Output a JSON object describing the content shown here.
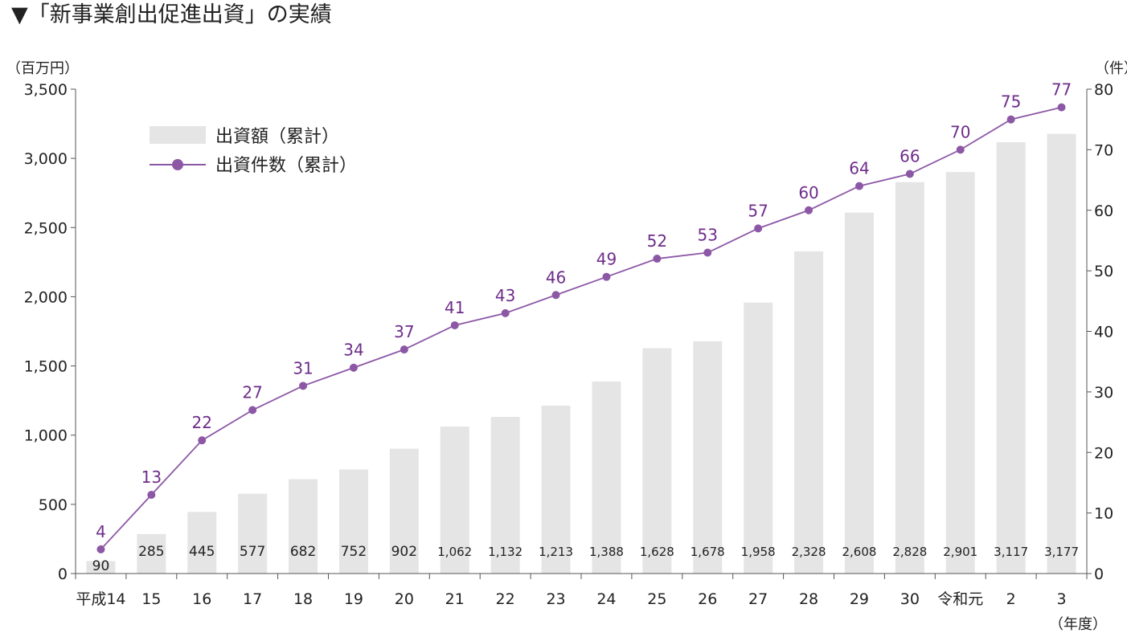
{
  "heading": "▼「新事業創出促進出資」の実績",
  "chart_data": {
    "type": "bar+line",
    "categories": [
      "平成14",
      "15",
      "16",
      "17",
      "18",
      "19",
      "20",
      "21",
      "22",
      "23",
      "24",
      "25",
      "26",
      "27",
      "28",
      "29",
      "30",
      "令和元",
      "2",
      "3"
    ],
    "series": [
      {
        "name": "出資額（累計）",
        "type": "bar",
        "axis": "left",
        "values": [
          90,
          285,
          445,
          577,
          682,
          752,
          902,
          1062,
          1132,
          1213,
          1388,
          1628,
          1678,
          1958,
          2328,
          2608,
          2828,
          2901,
          3117,
          3177
        ],
        "labels": [
          "90",
          "285",
          "445",
          "577",
          "682",
          "752",
          "902",
          "1,062",
          "1,132",
          "1,213",
          "1,388",
          "1,628",
          "1,678",
          "1,958",
          "2,328",
          "2,608",
          "2,828",
          "2,901",
          "3,117",
          "3,177"
        ]
      },
      {
        "name": "出資件数（累計）",
        "type": "line",
        "axis": "right",
        "values": [
          4,
          13,
          22,
          27,
          31,
          34,
          37,
          41,
          43,
          46,
          49,
          52,
          53,
          57,
          60,
          64,
          66,
          70,
          75,
          77
        ]
      }
    ],
    "y_left": {
      "unit": "（百万円）",
      "range": [
        0,
        3500
      ],
      "ticks": [
        "0",
        "500",
        "1,000",
        "1,500",
        "2,000",
        "2,500",
        "3,000",
        "3,500"
      ]
    },
    "y_right": {
      "unit": "（件）",
      "range": [
        0,
        80
      ],
      "ticks": [
        "0",
        "10",
        "20",
        "30",
        "40",
        "50",
        "60",
        "70",
        "80"
      ]
    },
    "x_unit": "（年度）",
    "legend_position": "top-left",
    "grid": false,
    "colors": {
      "bar": "#e5e5e5",
      "line": "#8c58a6",
      "label": "#6e2d8a",
      "axis": "#555555"
    }
  }
}
